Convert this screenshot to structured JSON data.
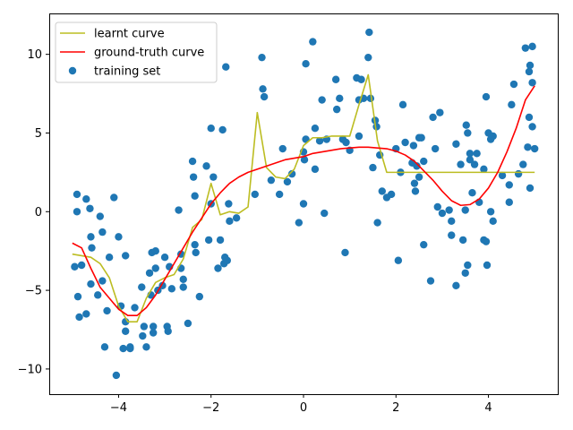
{
  "chart_data": {
    "type": "scatter",
    "title": "",
    "xlabel": "",
    "ylabel": "",
    "xlim": [
      -5.5,
      5.5
    ],
    "ylim": [
      -11.6,
      12.6
    ],
    "xticks": [
      -4,
      -2,
      0,
      2,
      4
    ],
    "yticks": [
      -10,
      -5,
      0,
      5,
      10
    ],
    "grid": false,
    "legend_position": "top-left",
    "colors": {
      "learnt": "#bcbd22",
      "ground_truth": "#ff0000",
      "training": "#1f77b4"
    },
    "legend": [
      {
        "key": "learnt",
        "label": "learnt curve",
        "kind": "line"
      },
      {
        "key": "ground_truth",
        "label": "ground-truth curve",
        "kind": "line"
      },
      {
        "key": "training",
        "label": "training set",
        "kind": "marker"
      }
    ],
    "series": [
      {
        "name": "learnt curve",
        "key": "learnt",
        "kind": "line",
        "x": [
          -5.0,
          -4.6,
          -4.4,
          -4.2,
          -4.0,
          -3.8,
          -3.6,
          -3.4,
          -3.2,
          -3.0,
          -2.8,
          -2.6,
          -2.4,
          -2.2,
          -2.0,
          -1.8,
          -1.6,
          -1.4,
          -1.2,
          -1.0,
          -0.8,
          -0.6,
          -0.4,
          -0.2,
          0.0,
          0.2,
          0.4,
          0.6,
          0.8,
          1.0,
          1.2,
          1.4,
          1.6,
          1.8,
          2.0,
          2.4,
          2.8,
          3.2,
          3.6,
          4.0,
          4.4,
          4.8,
          5.0
        ],
        "y": [
          -2.7,
          -2.9,
          -3.3,
          -4.2,
          -6.0,
          -7.0,
          -7.0,
          -5.5,
          -4.5,
          -4.2,
          -4.0,
          -3.0,
          -1.0,
          -0.5,
          1.8,
          -0.2,
          0.0,
          -0.1,
          0.3,
          6.3,
          2.8,
          2.2,
          2.1,
          2.7,
          4.2,
          4.7,
          4.7,
          4.8,
          4.8,
          4.8,
          6.8,
          8.7,
          4.5,
          2.5,
          2.5,
          2.5,
          2.5,
          2.5,
          2.5,
          2.5,
          2.5,
          2.5,
          2.5
        ]
      },
      {
        "name": "ground-truth curve",
        "key": "ground_truth",
        "kind": "line",
        "x": [
          -5.0,
          -4.8,
          -4.6,
          -4.4,
          -4.2,
          -4.0,
          -3.8,
          -3.6,
          -3.4,
          -3.2,
          -3.0,
          -2.8,
          -2.6,
          -2.4,
          -2.2,
          -2.0,
          -1.8,
          -1.6,
          -1.4,
          -1.2,
          -1.0,
          -0.8,
          -0.6,
          -0.4,
          -0.2,
          0.0,
          0.2,
          0.4,
          0.6,
          0.8,
          1.0,
          1.2,
          1.4,
          1.6,
          1.8,
          2.0,
          2.2,
          2.4,
          2.6,
          2.8,
          3.0,
          3.2,
          3.4,
          3.6,
          3.8,
          4.0,
          4.2,
          4.4,
          4.6,
          4.8,
          5.0
        ],
        "y": [
          -2.0,
          -2.3,
          -3.6,
          -4.8,
          -5.5,
          -6.2,
          -6.6,
          -6.6,
          -6.1,
          -5.3,
          -4.3,
          -3.3,
          -2.3,
          -1.3,
          -0.4,
          0.5,
          1.2,
          1.8,
          2.2,
          2.5,
          2.7,
          2.9,
          3.1,
          3.3,
          3.4,
          3.5,
          3.7,
          3.8,
          3.9,
          4.0,
          4.05,
          4.1,
          4.1,
          4.05,
          4.0,
          3.85,
          3.6,
          3.2,
          2.6,
          2.0,
          1.3,
          0.7,
          0.4,
          0.45,
          0.8,
          1.5,
          2.5,
          3.8,
          5.3,
          7.1,
          8.0
        ]
      },
      {
        "name": "training set",
        "key": "training",
        "kind": "scatter",
        "points": [
          [
            -4.95,
            -3.5
          ],
          [
            -4.9,
            1.1
          ],
          [
            -4.9,
            0.0
          ],
          [
            -4.88,
            -5.4
          ],
          [
            -4.85,
            -6.7
          ],
          [
            -4.8,
            -3.4
          ],
          [
            -4.7,
            0.8
          ],
          [
            -4.7,
            -6.5
          ],
          [
            -4.62,
            0.2
          ],
          [
            -4.6,
            -4.6
          ],
          [
            -4.6,
            -1.6
          ],
          [
            -4.58,
            -2.3
          ],
          [
            -4.45,
            -5.3
          ],
          [
            -4.4,
            -0.3
          ],
          [
            -4.35,
            -1.3
          ],
          [
            -4.35,
            -4.4
          ],
          [
            -4.3,
            -8.6
          ],
          [
            -4.25,
            -6.3
          ],
          [
            -4.2,
            -2.9
          ],
          [
            -4.1,
            0.9
          ],
          [
            -4.05,
            -10.4
          ],
          [
            -4.0,
            -1.6
          ],
          [
            -3.95,
            -6.0
          ],
          [
            -3.9,
            -8.7
          ],
          [
            -3.85,
            -7.0
          ],
          [
            -3.85,
            -7.6
          ],
          [
            -3.85,
            -2.8
          ],
          [
            -3.75,
            -8.6
          ],
          [
            -3.75,
            -8.7
          ],
          [
            -3.65,
            -6.1
          ],
          [
            -3.5,
            -4.8
          ],
          [
            -3.48,
            -7.9
          ],
          [
            -3.45,
            -7.3
          ],
          [
            -3.4,
            -8.6
          ],
          [
            -3.33,
            -3.9
          ],
          [
            -3.3,
            -5.3
          ],
          [
            -3.28,
            -2.6
          ],
          [
            -3.25,
            -7.3
          ],
          [
            -3.25,
            -7.7
          ],
          [
            -3.2,
            -2.5
          ],
          [
            -3.2,
            -3.6
          ],
          [
            -3.15,
            -5.0
          ],
          [
            -3.05,
            -4.7
          ],
          [
            -3.0,
            -2.9
          ],
          [
            -2.95,
            -7.3
          ],
          [
            -2.93,
            -7.6
          ],
          [
            -2.9,
            -3.5
          ],
          [
            -2.85,
            -4.9
          ],
          [
            -2.7,
            0.1
          ],
          [
            -2.65,
            -3.6
          ],
          [
            -2.65,
            -2.7
          ],
          [
            -2.6,
            -4.8
          ],
          [
            -2.6,
            -4.3
          ],
          [
            -2.5,
            -7.1
          ],
          [
            -2.4,
            3.2
          ],
          [
            -2.38,
            2.2
          ],
          [
            -2.35,
            1.0
          ],
          [
            -2.35,
            -2.1
          ],
          [
            -2.33,
            -2.6
          ],
          [
            -2.25,
            -5.4
          ],
          [
            -2.1,
            2.9
          ],
          [
            -2.05,
            -1.8
          ],
          [
            -2.0,
            0.5
          ],
          [
            -2.0,
            5.3
          ],
          [
            -1.95,
            2.2
          ],
          [
            -1.85,
            -3.6
          ],
          [
            -1.8,
            -1.8
          ],
          [
            -1.75,
            5.2
          ],
          [
            -1.72,
            -3.3
          ],
          [
            -1.7,
            -2.9
          ],
          [
            -1.68,
            9.2
          ],
          [
            -1.65,
            -3.1
          ],
          [
            -1.62,
            0.5
          ],
          [
            -1.6,
            -0.6
          ],
          [
            -1.45,
            -0.4
          ],
          [
            -1.05,
            1.1
          ],
          [
            -0.9,
            9.8
          ],
          [
            -0.88,
            7.8
          ],
          [
            -0.85,
            7.3
          ],
          [
            -0.7,
            2.0
          ],
          [
            -0.52,
            1.1
          ],
          [
            -0.45,
            4.0
          ],
          [
            -0.35,
            1.9
          ],
          [
            -0.25,
            2.4
          ],
          [
            -0.1,
            -0.7
          ],
          [
            0.0,
            3.8
          ],
          [
            0.0,
            0.5
          ],
          [
            0.02,
            3.3
          ],
          [
            0.05,
            9.4
          ],
          [
            0.05,
            4.6
          ],
          [
            0.2,
            10.8
          ],
          [
            0.25,
            2.7
          ],
          [
            0.25,
            5.3
          ],
          [
            0.35,
            4.5
          ],
          [
            0.4,
            7.1
          ],
          [
            0.45,
            -0.1
          ],
          [
            0.5,
            4.6
          ],
          [
            0.7,
            8.4
          ],
          [
            0.72,
            6.5
          ],
          [
            0.78,
            7.2
          ],
          [
            0.85,
            4.6
          ],
          [
            0.9,
            -2.6
          ],
          [
            0.92,
            4.4
          ],
          [
            1.0,
            3.9
          ],
          [
            1.15,
            8.5
          ],
          [
            1.2,
            4.8
          ],
          [
            1.2,
            7.1
          ],
          [
            1.25,
            8.4
          ],
          [
            1.3,
            7.2
          ],
          [
            1.4,
            9.8
          ],
          [
            1.42,
            11.4
          ],
          [
            1.45,
            7.2
          ],
          [
            1.5,
            2.8
          ],
          [
            1.55,
            5.8
          ],
          [
            1.58,
            5.4
          ],
          [
            1.6,
            -0.7
          ],
          [
            1.65,
            3.6
          ],
          [
            1.7,
            1.3
          ],
          [
            1.8,
            0.9
          ],
          [
            1.9,
            1.1
          ],
          [
            2.0,
            4.0
          ],
          [
            2.05,
            -3.1
          ],
          [
            2.1,
            2.5
          ],
          [
            2.15,
            6.8
          ],
          [
            2.2,
            4.4
          ],
          [
            2.35,
            3.1
          ],
          [
            2.38,
            4.2
          ],
          [
            2.4,
            1.8
          ],
          [
            2.42,
            1.3
          ],
          [
            2.45,
            2.9
          ],
          [
            2.5,
            4.7
          ],
          [
            2.5,
            2.2
          ],
          [
            2.55,
            4.7
          ],
          [
            2.6,
            3.2
          ],
          [
            2.6,
            -2.1
          ],
          [
            2.75,
            -4.4
          ],
          [
            2.8,
            6.0
          ],
          [
            2.85,
            4.0
          ],
          [
            2.9,
            0.3
          ],
          [
            2.95,
            6.3
          ],
          [
            3.0,
            -0.1
          ],
          [
            3.15,
            0.1
          ],
          [
            3.2,
            -1.5
          ],
          [
            3.2,
            -0.6
          ],
          [
            3.3,
            4.3
          ],
          [
            3.3,
            -4.7
          ],
          [
            3.4,
            3.0
          ],
          [
            3.45,
            -1.8
          ],
          [
            3.5,
            -3.9
          ],
          [
            3.5,
            0.1
          ],
          [
            3.52,
            5.5
          ],
          [
            3.55,
            -3.4
          ],
          [
            3.55,
            5.0
          ],
          [
            3.6,
            3.7
          ],
          [
            3.6,
            3.3
          ],
          [
            3.65,
            1.2
          ],
          [
            3.7,
            3.0
          ],
          [
            3.75,
            3.7
          ],
          [
            3.8,
            0.6
          ],
          [
            3.9,
            -1.8
          ],
          [
            3.9,
            2.7
          ],
          [
            3.95,
            -1.9
          ],
          [
            3.95,
            7.3
          ],
          [
            3.97,
            -3.4
          ],
          [
            4.0,
            5.0
          ],
          [
            4.05,
            4.6
          ],
          [
            4.05,
            0.0
          ],
          [
            4.1,
            4.8
          ],
          [
            4.1,
            -0.6
          ],
          [
            4.3,
            2.3
          ],
          [
            4.45,
            1.7
          ],
          [
            4.45,
            0.6
          ],
          [
            4.5,
            6.8
          ],
          [
            4.55,
            8.1
          ],
          [
            4.65,
            2.4
          ],
          [
            4.75,
            3.0
          ],
          [
            4.8,
            10.4
          ],
          [
            4.85,
            4.1
          ],
          [
            4.88,
            6.0
          ],
          [
            4.88,
            8.9
          ],
          [
            4.9,
            1.5
          ],
          [
            4.9,
            9.3
          ],
          [
            4.95,
            10.5
          ],
          [
            4.95,
            8.2
          ],
          [
            4.95,
            5.4
          ],
          [
            5.0,
            4.0
          ]
        ]
      }
    ]
  }
}
